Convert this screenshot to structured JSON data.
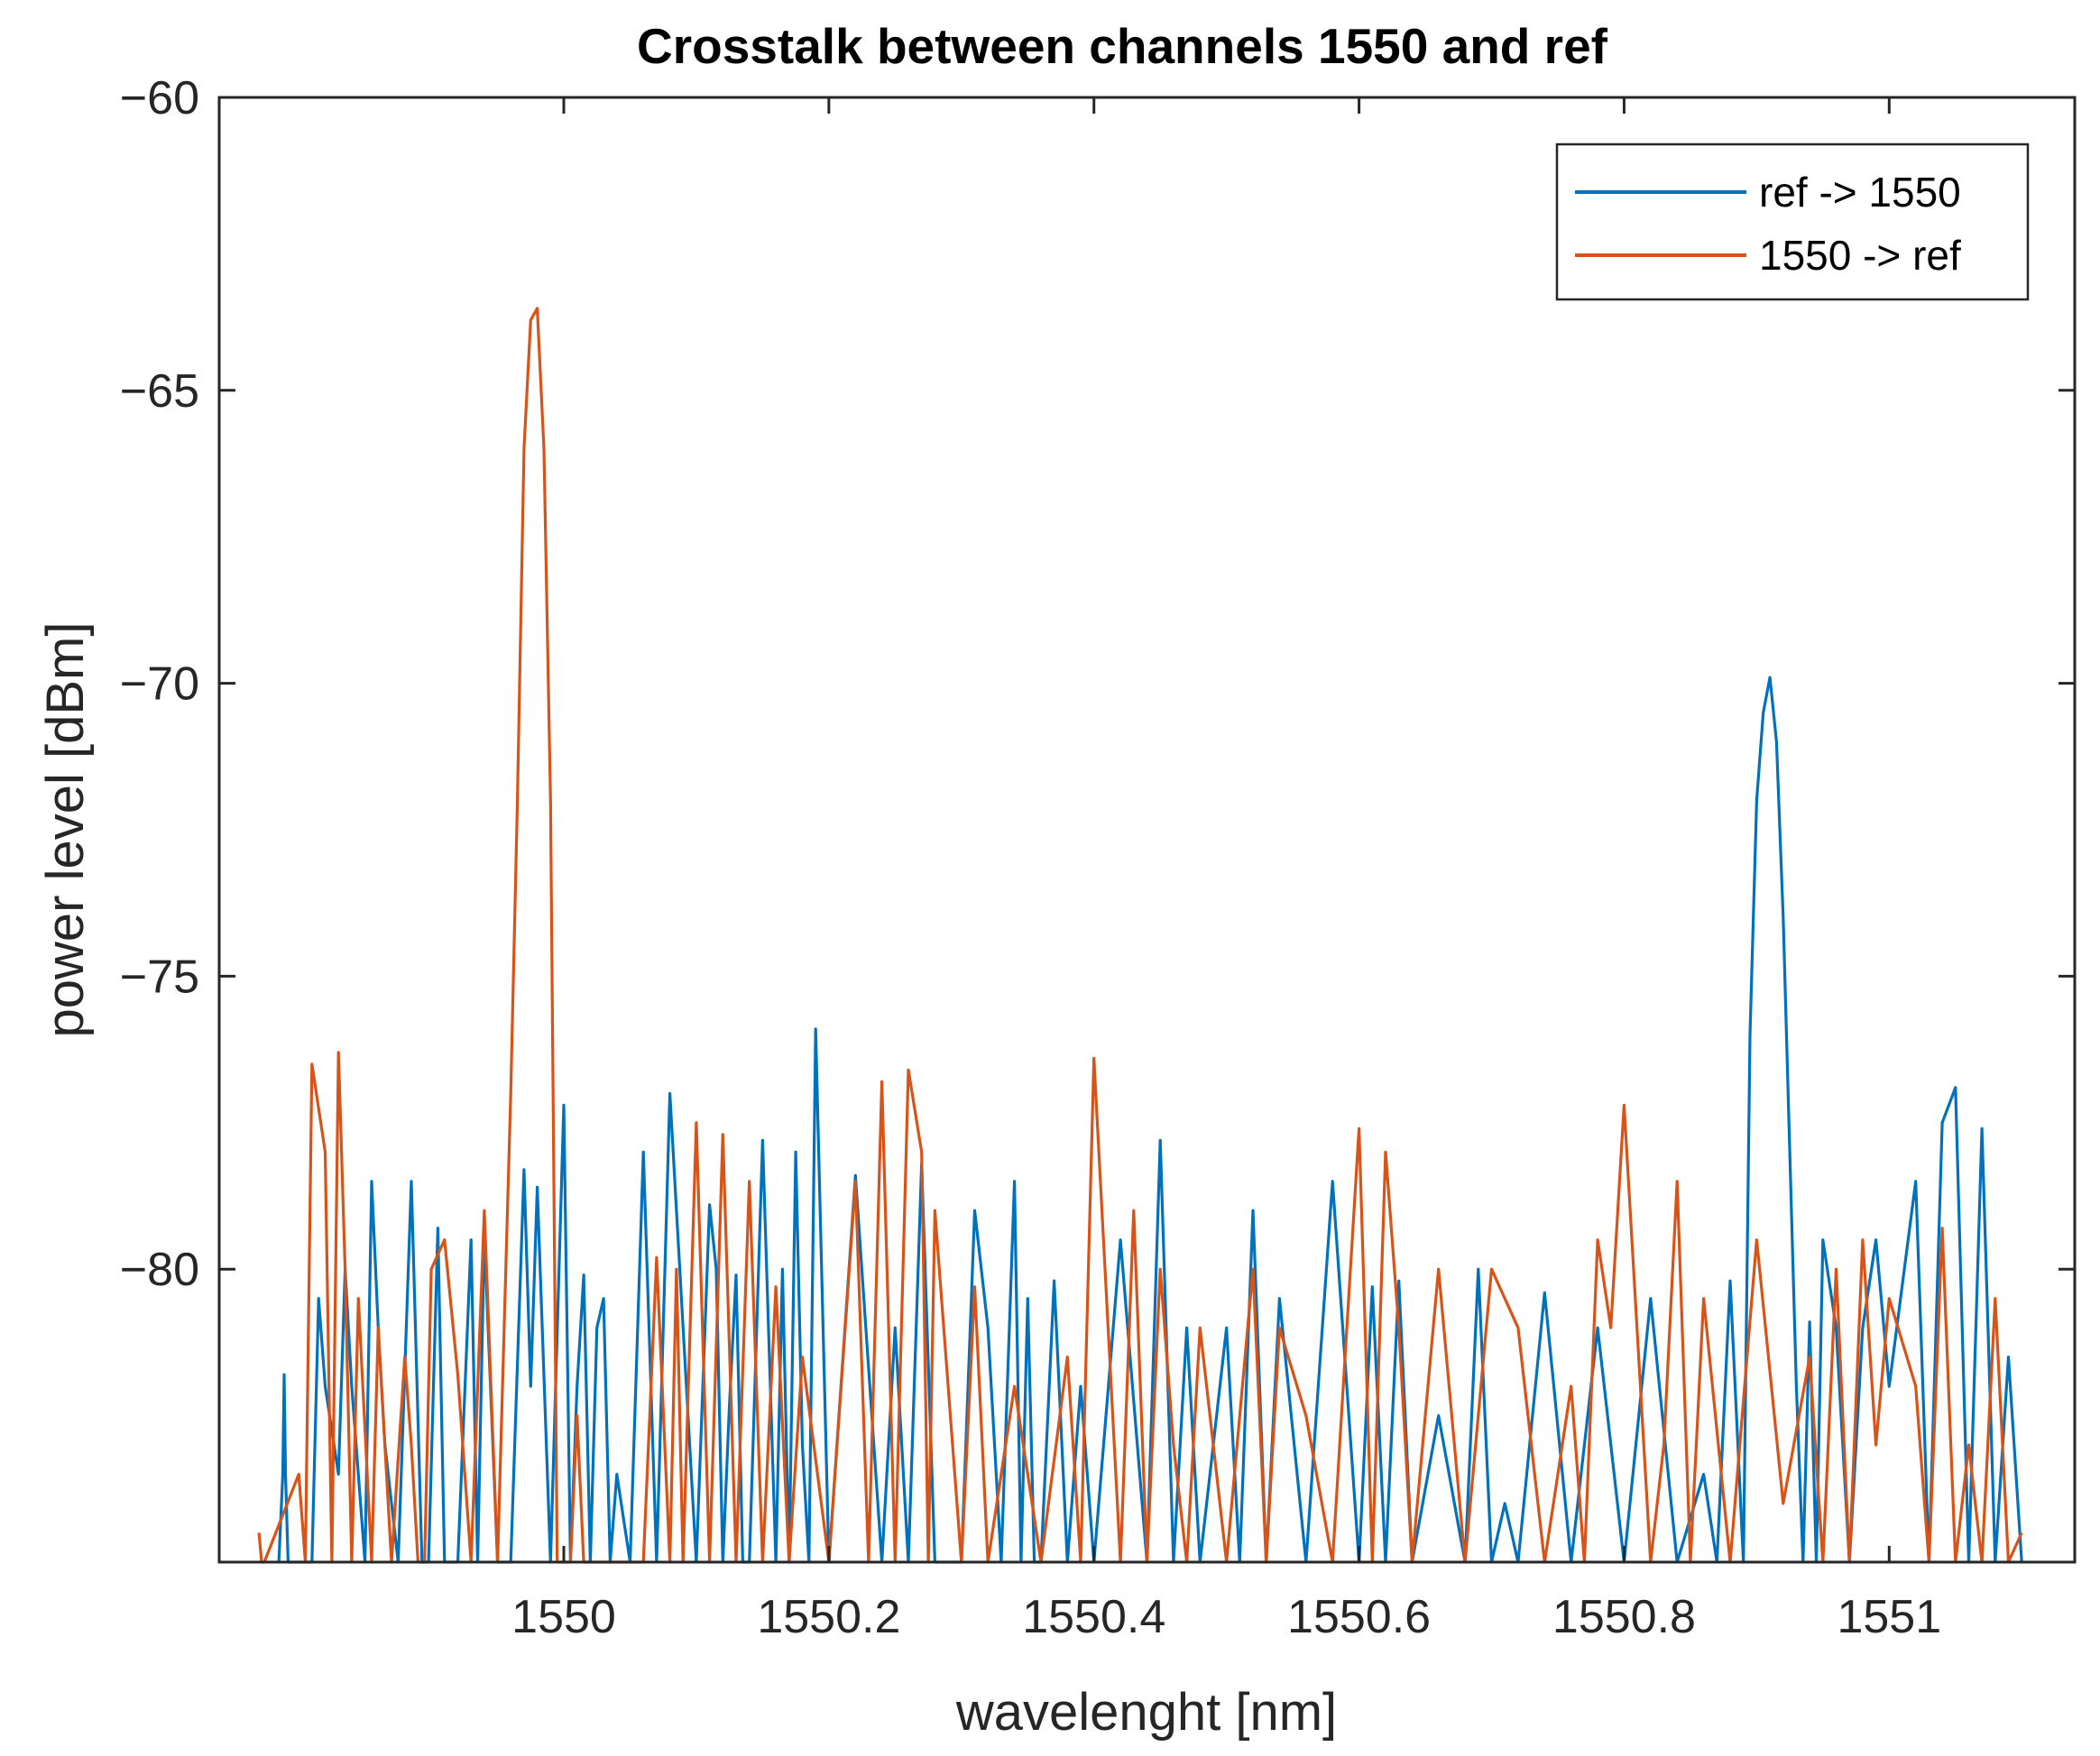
{
  "chart_data": {
    "type": "line",
    "title": "Crosstalk between channels 1550 and ref",
    "xlabel": "wavelenght [nm]",
    "ylabel": "power level [dBm]",
    "xlim": [
      1549.74,
      1551.14
    ],
    "ylim": [
      -85,
      -60
    ],
    "xticks": [
      1550,
      1550.2,
      1550.4,
      1550.6,
      1550.8,
      1551
    ],
    "xtick_labels": [
      "1550",
      "1550.2",
      "1550.4",
      "1550.6",
      "1550.8",
      "1551"
    ],
    "yticks": [
      -60,
      -65,
      -70,
      -75,
      -80
    ],
    "ytick_labels": [
      "−60",
      "−65",
      "−70",
      "−75",
      "−80"
    ],
    "legend_position": "top-right",
    "series": [
      {
        "name": "ref -> 1550",
        "color": "#0072BD",
        "x": [
          1549.785,
          1549.788,
          1549.789,
          1549.79,
          1549.792,
          1549.81,
          1549.815,
          1549.82,
          1549.83,
          1549.835,
          1549.84,
          1549.85,
          1549.855,
          1549.86,
          1549.865,
          1549.875,
          1549.885,
          1549.893,
          1549.898,
          1549.905,
          1549.91,
          1549.915,
          1549.92,
          1549.93,
          1549.935,
          1549.94,
          1549.95,
          1549.955,
          1549.96,
          1549.97,
          1549.975,
          1549.98,
          1549.99,
          1550.0,
          1550.005,
          1550.01,
          1550.015,
          1550.02,
          1550.025,
          1550.03,
          1550.035,
          1550.04,
          1550.05,
          1550.06,
          1550.07,
          1550.08,
          1550.1,
          1550.11,
          1550.115,
          1550.12,
          1550.125,
          1550.13,
          1550.135,
          1550.14,
          1550.15,
          1550.16,
          1550.165,
          1550.17,
          1550.175,
          1550.18,
          1550.185,
          1550.19,
          1550.2,
          1550.22,
          1550.24,
          1550.25,
          1550.26,
          1550.27,
          1550.28,
          1550.3,
          1550.31,
          1550.32,
          1550.33,
          1550.34,
          1550.345,
          1550.35,
          1550.355,
          1550.36,
          1550.37,
          1550.38,
          1550.39,
          1550.4,
          1550.42,
          1550.44,
          1550.45,
          1550.46,
          1550.47,
          1550.48,
          1550.5,
          1550.51,
          1550.52,
          1550.53,
          1550.54,
          1550.56,
          1550.58,
          1550.6,
          1550.61,
          1550.62,
          1550.63,
          1550.64,
          1550.66,
          1550.68,
          1550.69,
          1550.7,
          1550.71,
          1550.72,
          1550.74,
          1550.76,
          1550.78,
          1550.8,
          1550.82,
          1550.84,
          1550.86,
          1550.87,
          1550.88,
          1550.89,
          1550.895,
          1550.9,
          1550.905,
          1550.91,
          1550.915,
          1550.92,
          1550.925,
          1550.93,
          1550.935,
          1550.94,
          1550.945,
          1550.95,
          1550.96,
          1550.97,
          1550.98,
          1550.99,
          1551.0,
          1551.02,
          1551.03,
          1551.04,
          1551.05,
          1551.06,
          1551.07,
          1551.08,
          1551.09,
          1551.1
        ],
        "values": [
          -85,
          -83.5,
          -81.8,
          -83.5,
          -85,
          -85,
          -80.5,
          -82,
          -83.5,
          -80,
          -82,
          -85,
          -78.5,
          -81,
          -83,
          -85,
          -78.5,
          -85,
          -85,
          -79.3,
          -85,
          -85,
          -85,
          -79.5,
          -85,
          -79.4,
          -85,
          -85,
          -85,
          -78.3,
          -82,
          -78.6,
          -85,
          -77.2,
          -85,
          -82,
          -80.1,
          -85,
          -81,
          -80.5,
          -85,
          -83.5,
          -85,
          -78,
          -85,
          -77,
          -85,
          -78.9,
          -80,
          -85,
          -82.3,
          -80.1,
          -85,
          -85,
          -77.8,
          -85,
          -80,
          -85,
          -78,
          -83,
          -85,
          -75.9,
          -85,
          -78.4,
          -85,
          -81,
          -85,
          -78.2,
          -85,
          -85,
          -79,
          -81,
          -85,
          -78.5,
          -85,
          -80.5,
          -85,
          -85,
          -80.2,
          -85,
          -82,
          -85,
          -79.5,
          -85,
          -77.8,
          -85,
          -81,
          -85,
          -81,
          -85,
          -79,
          -85,
          -80.5,
          -85,
          -78.5,
          -85,
          -80.3,
          -85,
          -80.2,
          -85,
          -82.5,
          -85,
          -80,
          -85,
          -84,
          -85,
          -80.4,
          -85,
          -81,
          -85,
          -80.5,
          -85,
          -83.5,
          -85,
          -80.2,
          -85,
          -76,
          -72,
          -70.5,
          -69.9,
          -71,
          -74,
          -78,
          -82,
          -85,
          -80.9,
          -85,
          -79.5,
          -81,
          -85,
          -81,
          -79.5,
          -82,
          -78.5,
          -85,
          -77.5,
          -76.9,
          -85,
          -77.6,
          -85,
          -81.5,
          -85
        ]
      },
      {
        "name": "1550 -> ref",
        "color": "#D95319",
        "x": [
          1549.77,
          1549.772,
          1549.774,
          1549.8,
          1549.805,
          1549.81,
          1549.82,
          1549.825,
          1549.83,
          1549.835,
          1549.84,
          1549.845,
          1549.855,
          1549.86,
          1549.87,
          1549.88,
          1549.885,
          1549.89,
          1549.895,
          1549.9,
          1549.91,
          1549.92,
          1549.93,
          1549.94,
          1549.95,
          1549.96,
          1549.965,
          1549.97,
          1549.975,
          1549.98,
          1549.985,
          1549.99,
          1549.995,
          1550.0,
          1550.005,
          1550.01,
          1550.015,
          1550.02,
          1550.025,
          1550.03,
          1550.035,
          1550.04,
          1550.05,
          1550.06,
          1550.07,
          1550.08,
          1550.085,
          1550.09,
          1550.1,
          1550.11,
          1550.12,
          1550.13,
          1550.14,
          1550.15,
          1550.16,
          1550.17,
          1550.18,
          1550.2,
          1550.22,
          1550.23,
          1550.24,
          1550.25,
          1550.26,
          1550.27,
          1550.275,
          1550.28,
          1550.29,
          1550.3,
          1550.31,
          1550.32,
          1550.34,
          1550.36,
          1550.38,
          1550.39,
          1550.4,
          1550.42,
          1550.43,
          1550.44,
          1550.45,
          1550.46,
          1550.47,
          1550.48,
          1550.5,
          1550.52,
          1550.53,
          1550.54,
          1550.56,
          1550.58,
          1550.6,
          1550.61,
          1550.62,
          1550.63,
          1550.64,
          1550.66,
          1550.68,
          1550.7,
          1550.72,
          1550.74,
          1550.76,
          1550.77,
          1550.78,
          1550.79,
          1550.8,
          1550.82,
          1550.83,
          1550.84,
          1550.85,
          1550.86,
          1550.88,
          1550.9,
          1550.92,
          1550.94,
          1550.95,
          1550.96,
          1550.97,
          1550.98,
          1550.99,
          1551.0,
          1551.02,
          1551.03,
          1551.04,
          1551.05,
          1551.06,
          1551.07,
          1551.08,
          1551.09,
          1551.1
        ],
        "values": [
          -84.5,
          -85,
          -85,
          -83.5,
          -85,
          -76.5,
          -78,
          -85,
          -76.3,
          -80,
          -85,
          -80.5,
          -85,
          -81,
          -85,
          -81.5,
          -83,
          -85,
          -85,
          -80,
          -79.5,
          -81.8,
          -85,
          -79,
          -85,
          -77,
          -72,
          -66,
          -63.8,
          -63.6,
          -66,
          -72,
          -85,
          -85,
          -85,
          -82.5,
          -85,
          -85,
          -85,
          -85,
          -85,
          -85,
          -85,
          -85,
          -79.8,
          -85,
          -80,
          -85,
          -77.5,
          -85,
          -77.7,
          -85,
          -78.5,
          -85,
          -80.3,
          -85,
          -81.5,
          -85,
          -78.5,
          -85,
          -76.8,
          -85,
          -76.6,
          -78,
          -85,
          -79,
          -82,
          -85,
          -80.3,
          -85,
          -82,
          -85,
          -81.5,
          -85,
          -76.4,
          -85,
          -79,
          -85,
          -80,
          -83,
          -85,
          -81,
          -85,
          -80,
          -85,
          -81,
          -82.5,
          -85,
          -77.6,
          -85,
          -78,
          -81,
          -85,
          -80,
          -85,
          -80,
          -81,
          -85,
          -82,
          -85,
          -79.5,
          -81,
          -77.2,
          -85,
          -83,
          -78.5,
          -85,
          -80.5,
          -85,
          -79.5,
          -84,
          -81.5,
          -85,
          -80,
          -85,
          -79.5,
          -83,
          -80.5,
          -82,
          -85,
          -79.3,
          -85,
          -83,
          -85,
          -80.5,
          -85,
          -84.5
        ]
      }
    ]
  }
}
